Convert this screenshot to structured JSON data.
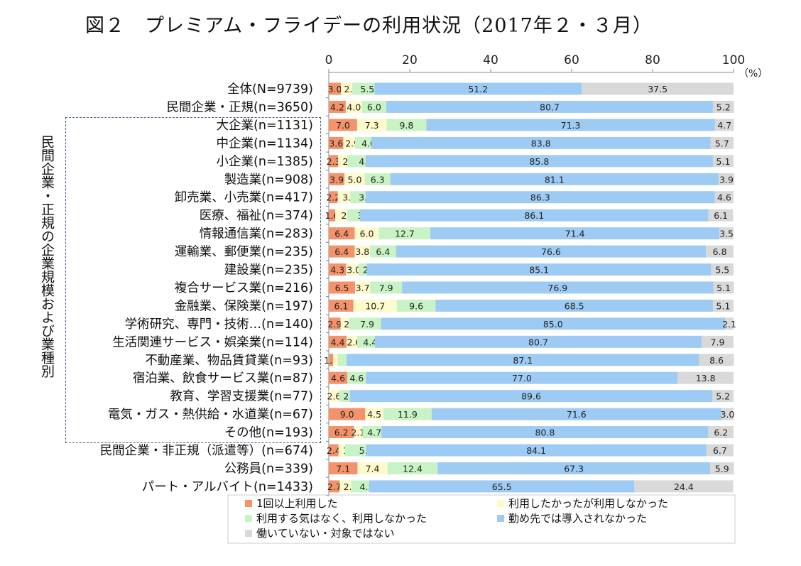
{
  "title": "図２　プレミアム・フライデーの利用状況（2017年２・３月）",
  "group_label": "民間企業・正規の企業規模および業種別",
  "chart_data": {
    "type": "stacked-bar-horizontal",
    "title": "図２　プレミアム・フライデーの利用状況（2017年２・３月）",
    "xlim": [
      0,
      100
    ],
    "xticks": [
      0,
      20,
      40,
      60,
      80,
      100
    ],
    "xunit": "（%）",
    "legend_position": "bottom",
    "categories": [
      "全体(N=9739)",
      "民間企業・正規(n=3650)",
      "大企業(n=1131)",
      "中企業(n=1134)",
      "小企業(n=1385)",
      "製造業(n=908)",
      "卸売業、小売業(n=417)",
      "医療、福祉(n=374)",
      "情報通信業(n=283)",
      "運輸業、郵便業(n=235)",
      "建設業(n=235)",
      "複合サービス業(n=216)",
      "金融業、保険業(n=197)",
      "学術研究、専門・技術…(n=140)",
      "生活関連サービス・娯楽業(n=114)",
      "不動産業、物品賃貸業(n=93)",
      "宿泊業、飲食サービス業(n=87)",
      "教育、学習支援業(n=77)",
      "電気・ガス・熱供給・水道業(n=67)",
      "その他(n=193)",
      "民間企業・非正規（派遣等）(n=674)",
      "公務員(n=339)",
      "パート・アルバイト(n=1433)"
    ],
    "series": [
      {
        "name": "1回以上利用した",
        "color": "#f4936b",
        "values": [
          3.0,
          4.2,
          7.0,
          3.6,
          2.3,
          3.9,
          2.2,
          1.6,
          6.4,
          6.4,
          4.3,
          6.5,
          6.1,
          2.9,
          4.4,
          1.1,
          4.6,
          0.0,
          9.0,
          6.2,
          2.4,
          7.1,
          2.7
        ]
      },
      {
        "name": "利用したかったが利用しなかった",
        "color": "#fffacb",
        "values": [
          2.8,
          4.0,
          7.3,
          2.9,
          2.3,
          5.0,
          3.1,
          2.9,
          6.0,
          3.8,
          3.0,
          3.7,
          10.7,
          2.1,
          2.6,
          1.1,
          0.0,
          2.6,
          4.5,
          2.1,
          1.6,
          7.4,
          2.8
        ]
      },
      {
        "name": "利用する気はなく、利用しなかった",
        "color": "#c9f3c5",
        "values": [
          5.5,
          6.0,
          9.8,
          4.0,
          4.5,
          6.3,
          3.8,
          3.2,
          12.7,
          6.4,
          2.1,
          7.9,
          9.6,
          7.9,
          4.4,
          2.2,
          4.6,
          2.6,
          11.9,
          4.7,
          5.2,
          12.4,
          4.5
        ]
      },
      {
        "name": "勤め先では導入されなかった",
        "color": "#9ecbf4",
        "values": [
          51.2,
          80.7,
          71.3,
          83.8,
          85.8,
          81.1,
          86.3,
          86.1,
          71.4,
          76.6,
          85.1,
          76.9,
          68.5,
          85.0,
          80.7,
          87.1,
          77.0,
          89.6,
          71.6,
          80.8,
          84.1,
          67.3,
          65.5
        ]
      },
      {
        "name": "働いていない・対象ではない",
        "color": "#d9d9d9",
        "values": [
          37.5,
          5.2,
          4.7,
          5.7,
          5.1,
          3.9,
          4.6,
          6.1,
          3.5,
          6.8,
          5.5,
          5.1,
          5.1,
          2.1,
          7.9,
          8.6,
          13.8,
          5.2,
          3.0,
          6.2,
          6.7,
          5.9,
          24.4
        ]
      }
    ]
  }
}
